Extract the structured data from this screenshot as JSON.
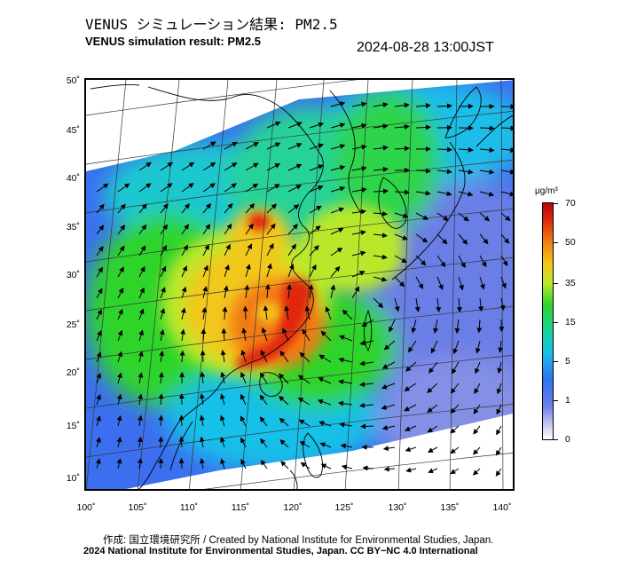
{
  "header": {
    "title_jp": "VENUS シミュレーション結果: PM2.5",
    "title_en": "VENUS simulation result: PM2.5",
    "timestamp": "2024-08-28 13:00JST"
  },
  "map": {
    "lat_labels": [
      "50˚",
      "45˚",
      "40˚",
      "35˚",
      "30˚",
      "25˚",
      "20˚",
      "15˚",
      "10˚"
    ],
    "lon_labels": [
      "100˚",
      "105˚",
      "110˚",
      "115˚",
      "120˚",
      "125˚",
      "130˚",
      "135˚",
      "140˚"
    ],
    "lon_range": [
      100,
      141
    ],
    "lat_range": [
      9,
      51
    ],
    "field_variable": "PM2.5 concentration",
    "overlay": "wind vectors",
    "high_concentration_region": "South China (around 110–122°E, 20–30°N)",
    "typhoon_circulation_center": "near 127°E, 26°N"
  },
  "colorbar": {
    "unit": "μg/m³",
    "ticks": [
      "70",
      "50",
      "35",
      "15",
      "5",
      "1",
      "0"
    ],
    "colors": [
      "#b30808",
      "#e12510",
      "#f27a12",
      "#f2c81e",
      "#b9e82a",
      "#2fd42a",
      "#18d49a",
      "#18c0e8",
      "#2f73f0",
      "#6f7fe8",
      "#c8c8f0",
      "#ffffff"
    ]
  },
  "footer": {
    "credit": "作成: 国立環境研究所 / Created by National Institute for Environmental Studies, Japan.",
    "copyright": "2024 National Institute for Environmental Studies, Japan. CC BY−NC 4.0 International"
  }
}
